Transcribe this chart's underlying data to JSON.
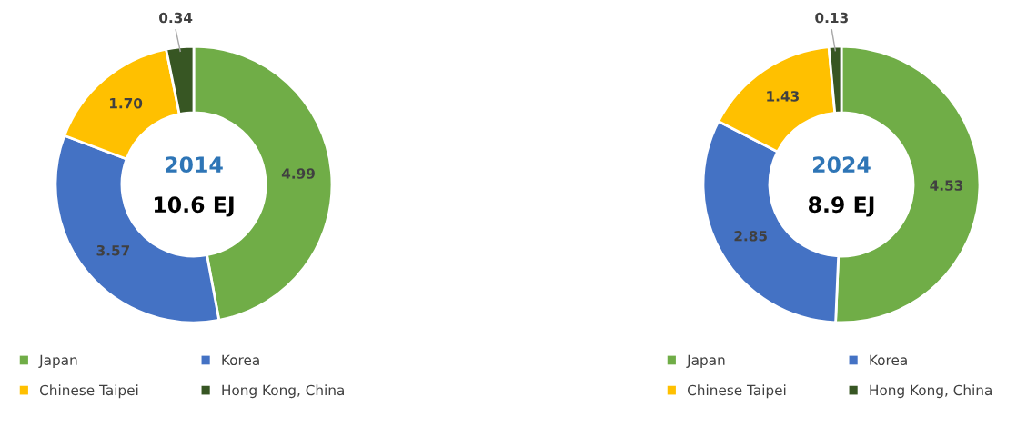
{
  "chart_data": [
    {
      "type": "donut",
      "categories": [
        "Japan",
        "Korea",
        "Chinese Taipei",
        "Hong Kong, China"
      ],
      "values": [
        4.99,
        3.57,
        1.7,
        0.34
      ],
      "value_labels": [
        "4.99",
        "3.57",
        "1.70",
        "0.34"
      ],
      "colors": [
        "#70ad47",
        "#4472c4",
        "#ffc000",
        "#375623"
      ],
      "legend": "bottom",
      "annotations": [
        "2014",
        "10.6 EJ"
      ]
    },
    {
      "type": "donut",
      "categories": [
        "Japan",
        "Korea",
        "Chinese Taipei",
        "Hong Kong, China"
      ],
      "values": [
        4.53,
        2.85,
        1.43,
        0.13
      ],
      "value_labels": [
        "4.53",
        "2.85",
        "1.43",
        "0.13"
      ],
      "colors": [
        "#70ad47",
        "#4472c4",
        "#ffc000",
        "#375623"
      ],
      "legend": "bottom",
      "annotations": [
        "2024",
        "8.9 EJ"
      ]
    }
  ]
}
